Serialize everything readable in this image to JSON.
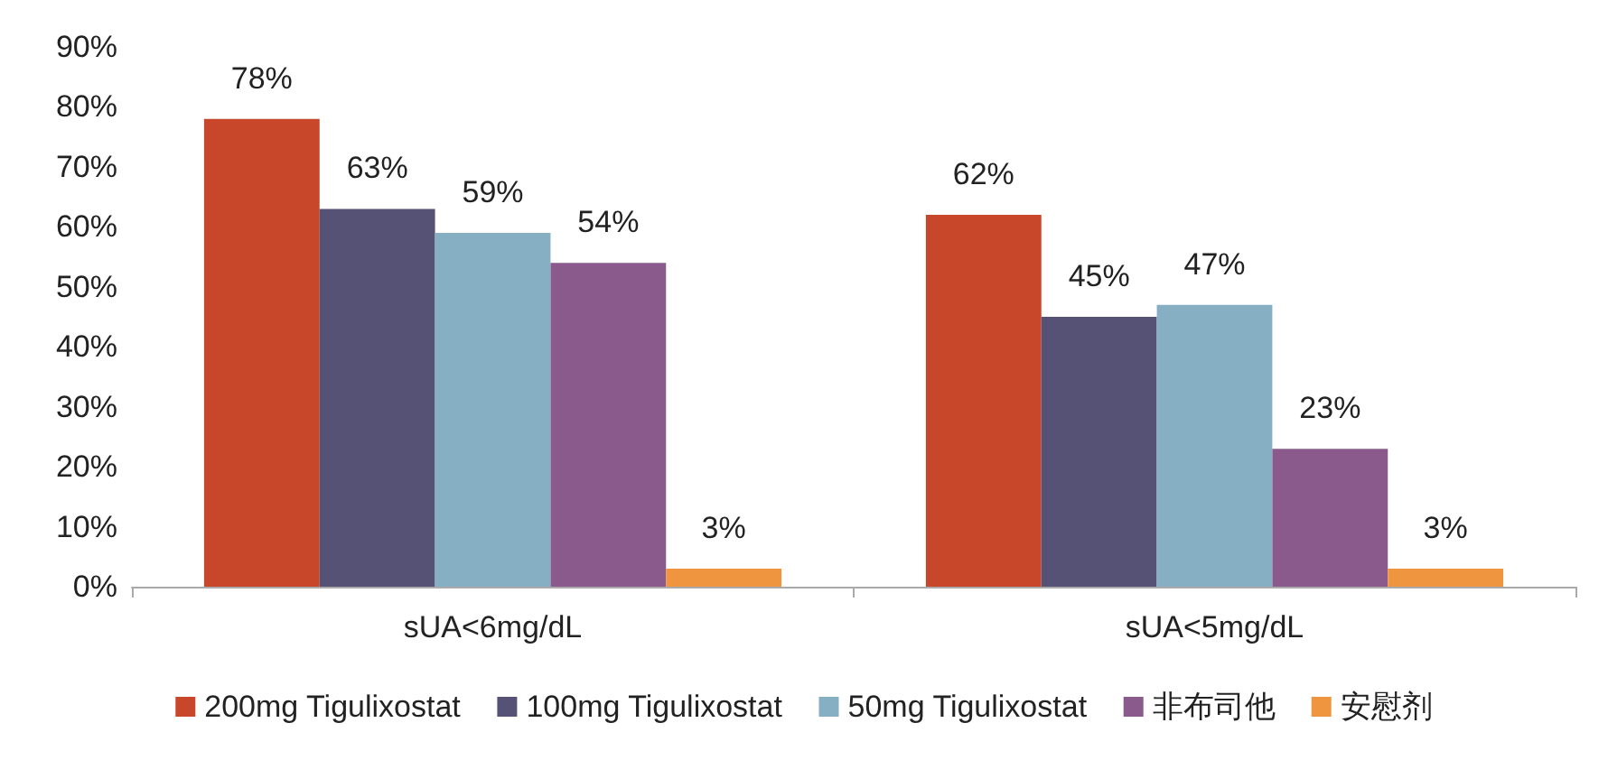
{
  "chart_data": {
    "type": "bar",
    "categories": [
      "sUA<6mg/dL",
      "sUA<5mg/dL"
    ],
    "series": [
      {
        "name": "200mg Tigulixostat",
        "color": "#c8472a",
        "values": [
          78,
          62
        ],
        "value_labels": [
          "78%",
          "62%"
        ]
      },
      {
        "name": "100mg Tigulixostat",
        "color": "#565275",
        "values": [
          63,
          45
        ],
        "value_labels": [
          "63%",
          "45%"
        ]
      },
      {
        "name": "50mg Tigulixostat",
        "color": "#87afc4",
        "values": [
          59,
          47
        ],
        "value_labels": [
          "59%",
          "47%"
        ]
      },
      {
        "name": "非布司他",
        "color": "#8a5a8c",
        "values": [
          54,
          23
        ],
        "value_labels": [
          "54%",
          "23%"
        ]
      },
      {
        "name": "安慰剂",
        "color": "#f0953f",
        "values": [
          3,
          3
        ],
        "value_labels": [
          "3%",
          "3%"
        ]
      }
    ],
    "ylim": [
      0,
      90
    ],
    "yticks": [
      {
        "value": 0,
        "label": "0%"
      },
      {
        "value": 10,
        "label": "10%"
      },
      {
        "value": 20,
        "label": "20%"
      },
      {
        "value": 30,
        "label": "30%"
      },
      {
        "value": 40,
        "label": "40%"
      },
      {
        "value": 50,
        "label": "50%"
      },
      {
        "value": 60,
        "label": "60%"
      },
      {
        "value": 70,
        "label": "70%"
      },
      {
        "value": 80,
        "label": "80%"
      },
      {
        "value": 90,
        "label": "90%"
      }
    ],
    "grid": false,
    "legend": "bottom"
  }
}
